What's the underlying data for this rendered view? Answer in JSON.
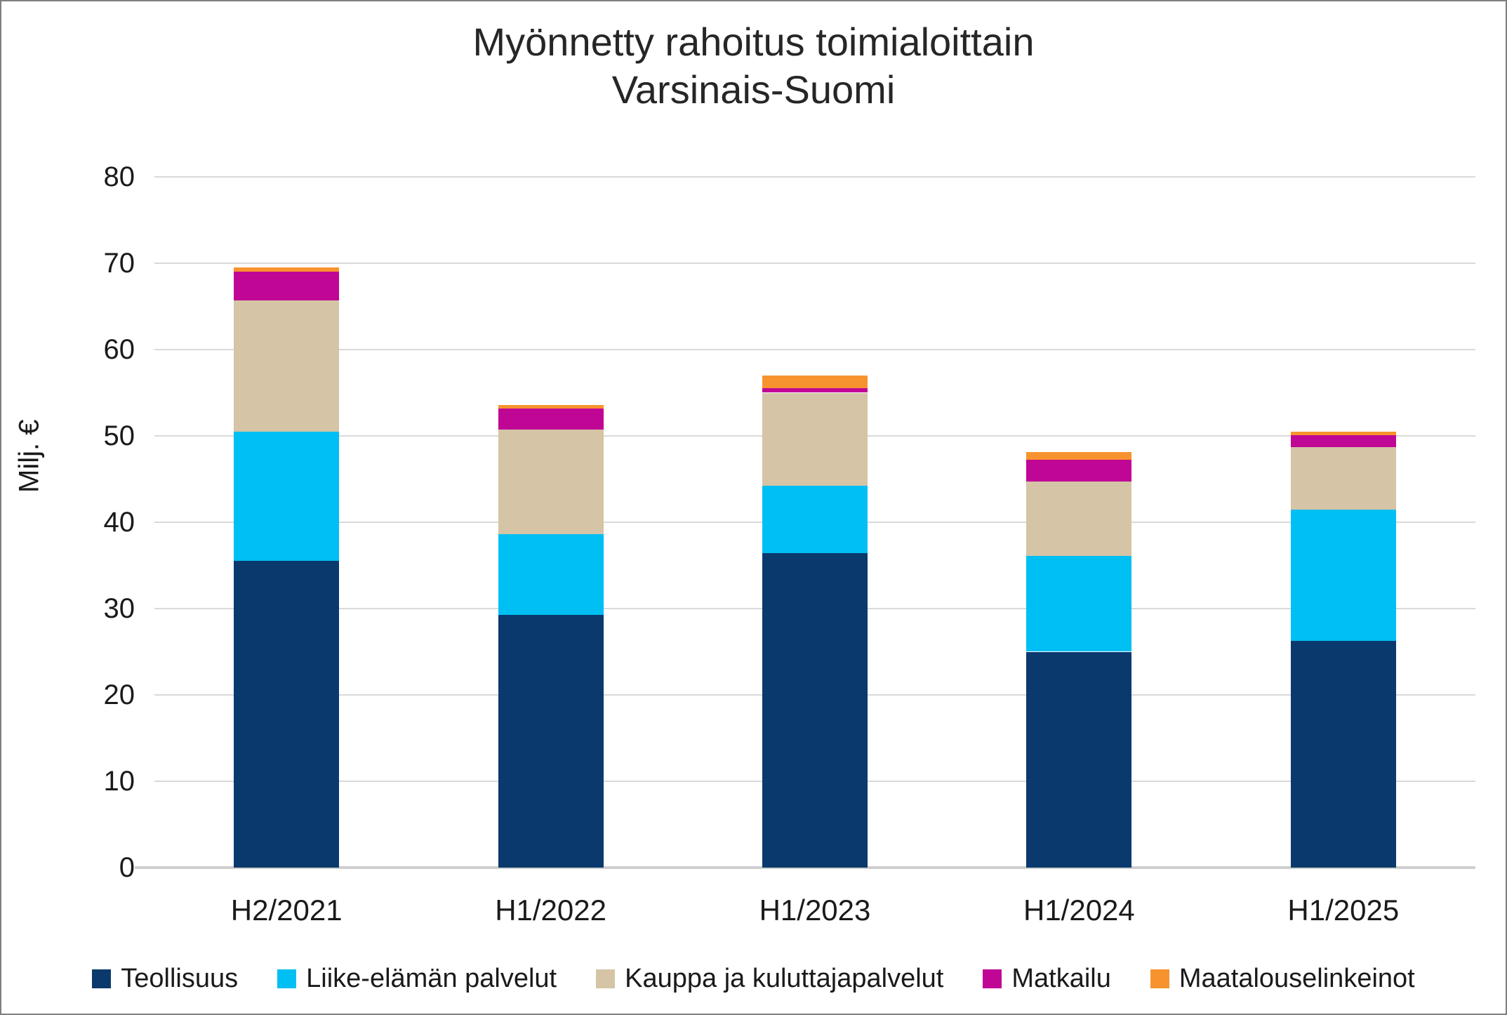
{
  "title": {
    "line1": "Myönnetty rahoitus toimialoittain",
    "line2": "Varsinais-Suomi"
  },
  "y_axis": {
    "title": "Milj. €",
    "min": 0,
    "max": 80,
    "tick_step": 10,
    "tick_labels": [
      "0",
      "10",
      "20",
      "30",
      "40",
      "50",
      "60",
      "70",
      "80"
    ]
  },
  "x_axis": {
    "categories": [
      "H2/2021",
      "H1/2022",
      "H1/2023",
      "H1/2024",
      "H1/2025"
    ]
  },
  "legend": {
    "items": [
      "Teollisuus",
      "Liike-elämän palvelut",
      "Kauppa ja kuluttajapalvelut",
      "Matkailu",
      "Maatalouselinkeinot"
    ]
  },
  "colors": {
    "teollisuus": "#0a396d",
    "liike_elaman_palvelut": "#00bff3",
    "kauppa_ja_kuluttajapalvelut": "#d5c4a6",
    "matkailu": "#c00695",
    "maatalouselinkeinot": "#f7932e",
    "gridline": "#d9d9d9",
    "axis_line": "#cfcfcf",
    "text": "#1a1a1a"
  },
  "chart_data": {
    "type": "bar",
    "stacked": true,
    "title": "Myönnetty rahoitus toimialoittain Varsinais-Suomi",
    "ylabel": "Milj. €",
    "ylim": [
      0,
      80
    ],
    "grid": true,
    "legend_position": "bottom",
    "categories": [
      "H2/2021",
      "H1/2022",
      "H1/2023",
      "H1/2024",
      "H1/2025"
    ],
    "series": [
      {
        "name": "Teollisuus",
        "color": "#0a396d",
        "values": [
          35.5,
          29.3,
          36.4,
          25.0,
          26.3
        ]
      },
      {
        "name": "Liike-elämän palvelut",
        "color": "#00bff3",
        "values": [
          15.0,
          9.3,
          7.8,
          11.1,
          15.2
        ]
      },
      {
        "name": "Kauppa ja kuluttajapalvelut",
        "color": "#d5c4a6",
        "values": [
          15.2,
          12.1,
          10.8,
          8.6,
          7.2
        ]
      },
      {
        "name": "Matkailu",
        "color": "#c00695",
        "values": [
          3.3,
          2.5,
          0.5,
          2.5,
          1.4
        ]
      },
      {
        "name": "Maatalouselinkeinot",
        "color": "#f7932e",
        "values": [
          0.5,
          0.4,
          1.5,
          0.9,
          0.4
        ]
      }
    ],
    "totals": [
      69.5,
      53.6,
      57.0,
      48.1,
      50.5
    ]
  }
}
